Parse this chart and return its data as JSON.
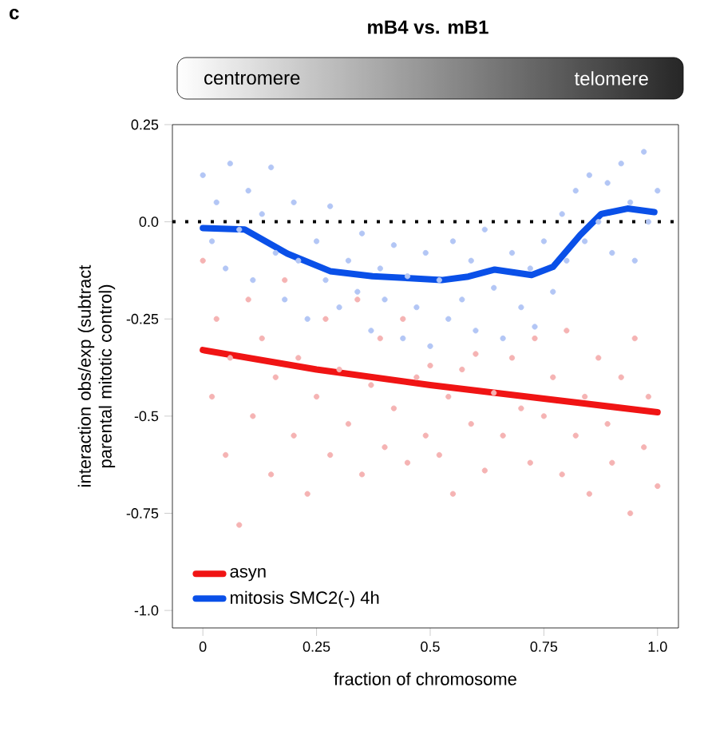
{
  "chart_data": {
    "type": "scatter",
    "title": "mB4 vs. mB1",
    "xlabel": "fraction of chromosome",
    "ylabel": "interaction obs/exp (subtract parental mitotic control)",
    "annotations": [
      "c",
      "centromere",
      "telomere"
    ],
    "xlim": [
      -0.067,
      1.046
    ],
    "ylim": [
      -1.045,
      0.25
    ],
    "xticks": [
      0,
      0.25,
      0.5,
      0.75,
      {
        "value": 1,
        "label": "1.0"
      }
    ],
    "yticks": [
      0.25,
      {
        "value": 0,
        "label": "0.0"
      },
      -0.25,
      {
        "value": -0.5,
        "label": "-0.5"
      },
      -0.75,
      {
        "value": -1,
        "label": "-1.0"
      }
    ],
    "legend": "bottom left",
    "grid": false,
    "ref_lines": [
      {
        "axis": "y",
        "value": 0,
        "color": "#000000",
        "line_style": "dotted"
      }
    ],
    "series": [
      {
        "color": "#f5b3b3",
        "marker": "circle",
        "x": [
          0.0,
          0.02,
          0.03,
          0.05,
          0.06,
          0.08,
          0.1,
          0.11,
          0.13,
          0.15,
          0.16,
          0.18,
          0.2,
          0.21,
          0.23,
          0.25,
          0.27,
          0.28,
          0.3,
          0.32,
          0.34,
          0.35,
          0.37,
          0.39,
          0.4,
          0.42,
          0.44,
          0.45,
          0.47,
          0.49,
          0.5,
          0.52,
          0.54,
          0.55,
          0.57,
          0.59,
          0.6,
          0.62,
          0.64,
          0.66,
          0.68,
          0.7,
          0.72,
          0.73,
          0.75,
          0.77,
          0.79,
          0.8,
          0.82,
          0.84,
          0.85,
          0.87,
          0.89,
          0.9,
          0.92,
          0.94,
          0.95,
          0.97,
          0.98,
          1.0
        ],
        "values": [
          -0.1,
          -0.45,
          -0.25,
          -0.6,
          -0.35,
          -0.78,
          -0.2,
          -0.5,
          -0.3,
          -0.65,
          -0.4,
          -0.15,
          -0.55,
          -0.35,
          -0.7,
          -0.45,
          -0.25,
          -0.6,
          -0.38,
          -0.52,
          -0.2,
          -0.65,
          -0.42,
          -0.3,
          -0.58,
          -0.48,
          -0.25,
          -0.62,
          -0.4,
          -0.55,
          -0.37,
          -0.6,
          -0.45,
          -0.7,
          -0.38,
          -0.52,
          -0.34,
          -0.64,
          -0.44,
          -0.55,
          -0.35,
          -0.48,
          -0.62,
          -0.3,
          -0.5,
          -0.4,
          -0.65,
          -0.28,
          -0.55,
          -0.45,
          -0.7,
          -0.35,
          -0.52,
          -0.62,
          -0.4,
          -0.75,
          -0.3,
          -0.58,
          -0.45,
          -0.68
        ]
      },
      {
        "color": "#b3c6f5",
        "marker": "circle",
        "x": [
          0.0,
          0.02,
          0.03,
          0.05,
          0.06,
          0.08,
          0.1,
          0.11,
          0.13,
          0.15,
          0.16,
          0.18,
          0.2,
          0.21,
          0.23,
          0.25,
          0.27,
          0.28,
          0.3,
          0.32,
          0.34,
          0.35,
          0.37,
          0.39,
          0.4,
          0.42,
          0.44,
          0.45,
          0.47,
          0.49,
          0.5,
          0.52,
          0.54,
          0.55,
          0.57,
          0.59,
          0.6,
          0.62,
          0.64,
          0.66,
          0.68,
          0.7,
          0.72,
          0.73,
          0.75,
          0.77,
          0.79,
          0.8,
          0.82,
          0.84,
          0.85,
          0.87,
          0.89,
          0.9,
          0.92,
          0.94,
          0.95,
          0.97,
          0.98,
          1.0
        ],
        "values": [
          0.12,
          -0.05,
          0.05,
          -0.12,
          0.15,
          -0.02,
          0.08,
          -0.15,
          0.02,
          0.14,
          -0.08,
          -0.2,
          0.05,
          -0.1,
          -0.25,
          -0.05,
          -0.15,
          0.04,
          -0.22,
          -0.1,
          -0.18,
          -0.03,
          -0.28,
          -0.12,
          -0.2,
          -0.06,
          -0.3,
          -0.14,
          -0.22,
          -0.08,
          -0.32,
          -0.15,
          -0.25,
          -0.05,
          -0.2,
          -0.1,
          -0.28,
          -0.02,
          -0.17,
          -0.3,
          -0.08,
          -0.22,
          -0.12,
          -0.27,
          -0.05,
          -0.18,
          0.02,
          -0.1,
          0.08,
          -0.05,
          0.12,
          0.0,
          0.1,
          -0.08,
          0.15,
          0.05,
          -0.1,
          0.18,
          0.0,
          0.08
        ]
      },
      {
        "type": "line",
        "name": "asyn",
        "color": "#f01414",
        "marker": "none",
        "x": [
          0,
          0.25,
          0.5,
          0.75,
          1.0
        ],
        "values": [
          -0.33,
          -0.38,
          -0.42,
          -0.455,
          -0.49
        ]
      },
      {
        "type": "line",
        "name": "mitosis SMC2(-) 4h",
        "color": "#0a50e8",
        "marker": "none",
        "x": [
          0,
          0.092,
          0.186,
          0.28,
          0.373,
          0.455,
          0.525,
          0.584,
          0.642,
          0.723,
          0.77,
          0.83,
          0.876,
          0.934,
          0.993
        ],
        "values": [
          -0.016,
          -0.02,
          -0.082,
          -0.127,
          -0.14,
          -0.145,
          -0.15,
          -0.141,
          -0.123,
          -0.137,
          -0.116,
          -0.034,
          0.02,
          0.034,
          0.025
        ]
      }
    ]
  }
}
